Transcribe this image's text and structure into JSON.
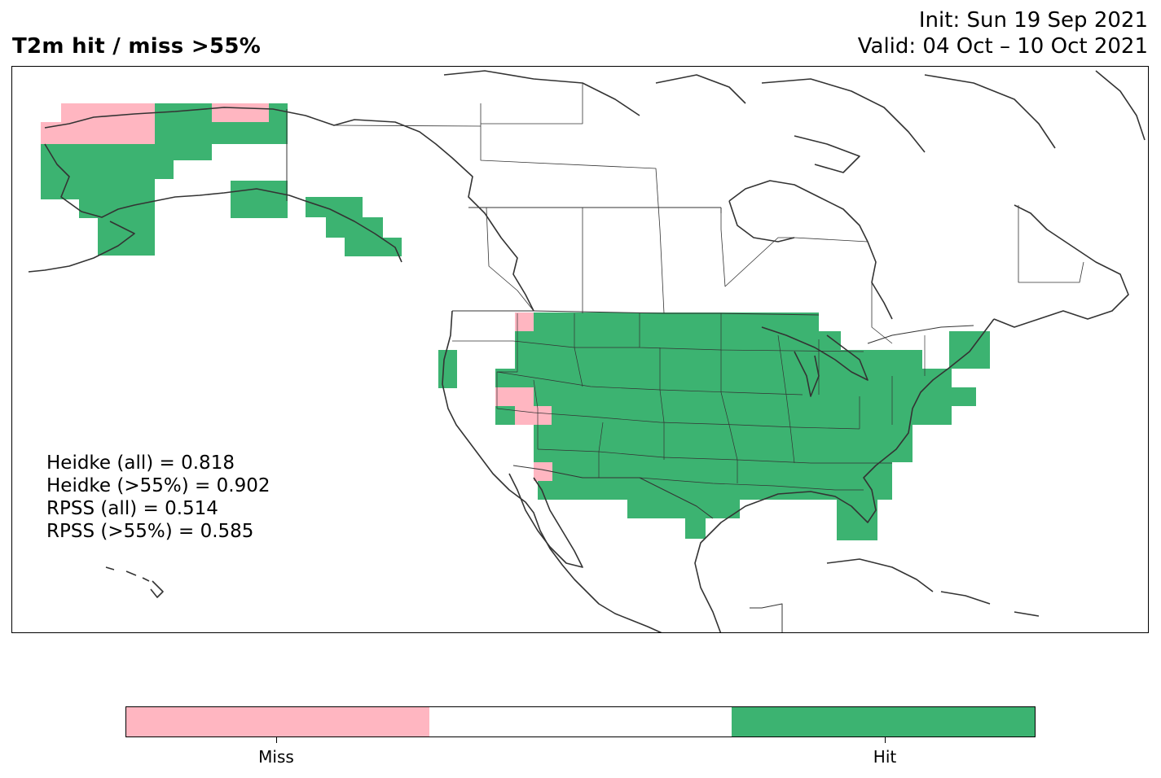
{
  "header": {
    "title": "T2m hit / miss  >55%",
    "init": "Init: Sun 19 Sep 2021",
    "valid": "Valid: 04 Oct – 10 Oct 2021"
  },
  "stats": [
    "Heidke (all) = 0.818",
    "Heidke (>55%) = 0.902",
    "RPSS (all) = 0.514",
    "RPSS (>55%) = 0.585"
  ],
  "colors": {
    "miss": "#ffb6c1",
    "neutral": "#ffffff",
    "hit": "#3cb371",
    "coast": "#333333"
  },
  "colorbar": {
    "labels": [
      "Miss",
      "Hit"
    ]
  },
  "map": {
    "region": "North America",
    "categories": [
      "Miss",
      "Hit"
    ],
    "hit_regions": [
      "Alaska",
      "Southeast Alaska",
      "Contiguous United States",
      "Florida"
    ],
    "miss_regions": [
      "Northwest Alaska",
      "Northern Alaska coast",
      "Southern Nevada / Arizona border",
      "Southern California"
    ]
  }
}
